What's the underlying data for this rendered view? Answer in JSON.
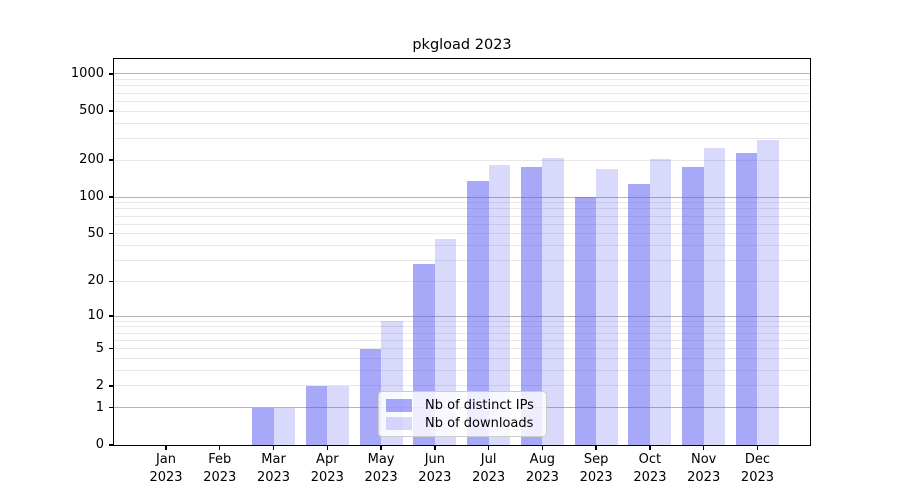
{
  "title": "pkgload 2023",
  "legend": {
    "items": [
      {
        "label": "Nb of distinct IPs"
      },
      {
        "label": "Nb of downloads"
      }
    ]
  },
  "colors": {
    "bar_base": "#5151f1",
    "grid_major": "#b4b4b4",
    "grid_minor": "#e8e8e8",
    "axis": "#000000",
    "legend_background": "#ffffff",
    "legend_border": "#cccccc"
  },
  "chart_data": {
    "type": "bar",
    "title": "pkgload 2023",
    "categories": [
      {
        "month": "Jan",
        "year": "2023"
      },
      {
        "month": "Feb",
        "year": "2023"
      },
      {
        "month": "Mar",
        "year": "2023"
      },
      {
        "month": "Apr",
        "year": "2023"
      },
      {
        "month": "May",
        "year": "2023"
      },
      {
        "month": "Jun",
        "year": "2023"
      },
      {
        "month": "Jul",
        "year": "2023"
      },
      {
        "month": "Aug",
        "year": "2023"
      },
      {
        "month": "Sep",
        "year": "2023"
      },
      {
        "month": "Oct",
        "year": "2023"
      },
      {
        "month": "Nov",
        "year": "2023"
      },
      {
        "month": "Dec",
        "year": "2023"
      }
    ],
    "series": [
      {
        "name": "Nb of distinct IPs",
        "color": "#5151f1",
        "alpha": 0.5,
        "values": [
          0,
          0,
          1,
          2,
          5,
          28,
          135,
          175,
          100,
          127,
          175,
          228
        ]
      },
      {
        "name": "Nb of downloads",
        "color": "#5151f1",
        "alpha": 0.22,
        "values": [
          0,
          0,
          1,
          2,
          9,
          45,
          183,
          210,
          170,
          203,
          250,
          290
        ]
      }
    ],
    "yscale": "log1p",
    "ylim": [
      0,
      1320
    ],
    "yticks_labeled": [
      0,
      1,
      2,
      5,
      10,
      20,
      50,
      100,
      200,
      500,
      1000
    ],
    "yticks_major_grid": [
      1,
      10,
      100,
      1000
    ],
    "yticks_minor_grid": [
      2,
      3,
      4,
      5,
      6,
      7,
      8,
      9,
      20,
      30,
      40,
      50,
      60,
      70,
      80,
      90,
      200,
      300,
      400,
      500,
      600,
      700,
      800,
      900
    ],
    "grid": true,
    "legend_position": "lower center"
  }
}
